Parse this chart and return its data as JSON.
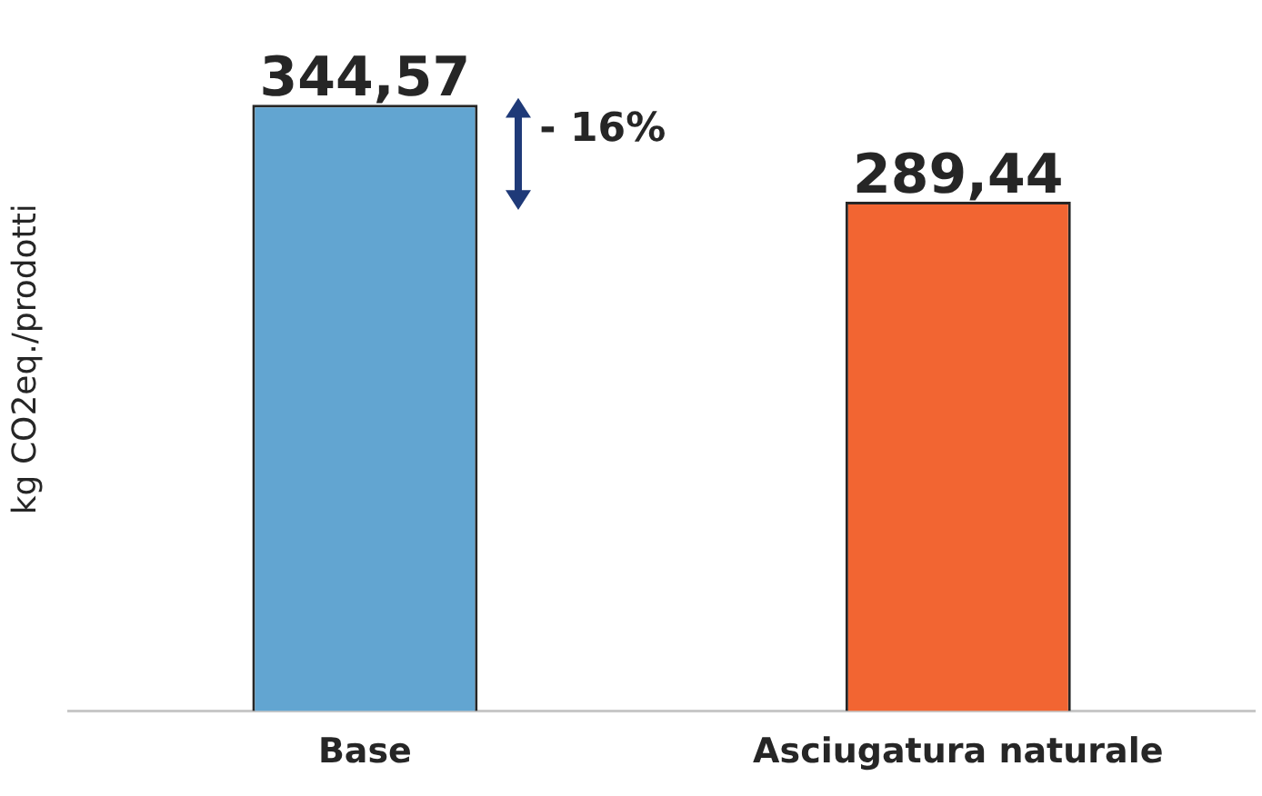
{
  "chart_data": {
    "type": "bar",
    "ylabel": "kg CO2eq./prodotti",
    "categories": [
      "Base",
      "Asciugatura naturale"
    ],
    "values": [
      344.57,
      289.44
    ],
    "colors": [
      "#62a5d1",
      "#f26532"
    ],
    "value_labels": [
      "344,57",
      "289,44"
    ],
    "tick_labels": "x",
    "grid": false,
    "legend": false,
    "annotations": [
      "- 16%"
    ]
  }
}
